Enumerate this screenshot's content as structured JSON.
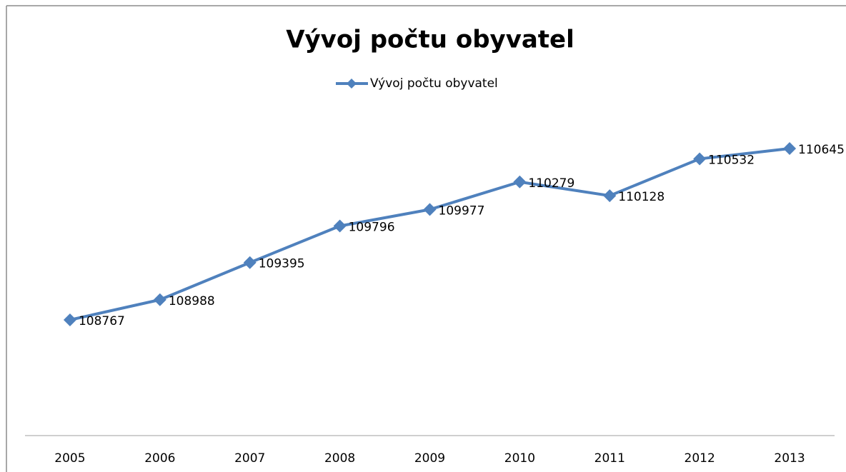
{
  "chart_data": {
    "type": "line",
    "title": "Vývoj počtu obyvatel",
    "categories": [
      "2005",
      "2006",
      "2007",
      "2008",
      "2009",
      "2010",
      "2011",
      "2012",
      "2013"
    ],
    "series": [
      {
        "name": "Vývoj počtu obyvatel",
        "color": "#4f81bd",
        "values": [
          108767,
          108988,
          109395,
          109796,
          109977,
          110279,
          110128,
          110532,
          110645
        ]
      }
    ],
    "legend": "top"
  }
}
